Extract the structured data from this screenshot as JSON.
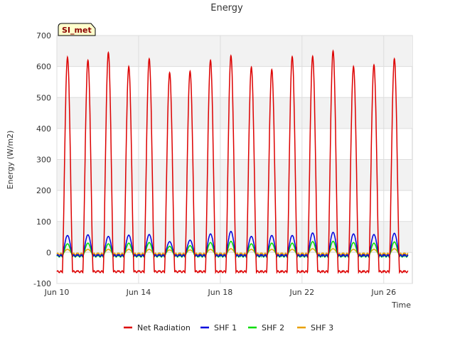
{
  "chart_data": {
    "type": "line",
    "title": "Energy",
    "xlabel": "Time",
    "ylabel": "Energy (W/m2)",
    "badge": "SI_met",
    "ylim": [
      -100,
      700
    ],
    "yticks": [
      -100,
      0,
      100,
      200,
      300,
      400,
      500,
      600,
      700
    ],
    "xlim_days": [
      10,
      27.4
    ],
    "xticks": [
      {
        "day": 10,
        "label": "Jun 10"
      },
      {
        "day": 14,
        "label": "Jun 14"
      },
      {
        "day": 18,
        "label": "Jun 18"
      },
      {
        "day": 22,
        "label": "Jun 22"
      },
      {
        "day": 26,
        "label": "Jun 26"
      }
    ],
    "legend_position": "bottom",
    "grid": true,
    "series": [
      {
        "name": "Net Radiation",
        "color": "#dd0000",
        "daily_peak": [
          630,
          620,
          645,
          600,
          625,
          580,
          585,
          620,
          635,
          598,
          590,
          632,
          633,
          650,
          600,
          605,
          625
        ],
        "night_min": -62
      },
      {
        "name": "SHF 1",
        "color": "#0000dd",
        "daily_peak": [
          55,
          57,
          52,
          56,
          58,
          35,
          40,
          60,
          68,
          52,
          55,
          55,
          63,
          65,
          60,
          58,
          62
        ],
        "night_min": -10
      },
      {
        "name": "SHF 2",
        "color": "#00dd00",
        "daily_peak": [
          28,
          30,
          28,
          30,
          32,
          20,
          22,
          32,
          36,
          28,
          30,
          30,
          35,
          36,
          32,
          30,
          34
        ],
        "night_min": -12
      },
      {
        "name": "SHF 3",
        "color": "#e8a000",
        "daily_peak": [
          10,
          10,
          10,
          10,
          10,
          8,
          8,
          10,
          12,
          10,
          10,
          10,
          12,
          12,
          10,
          10,
          12
        ],
        "night_min": -5
      }
    ]
  }
}
